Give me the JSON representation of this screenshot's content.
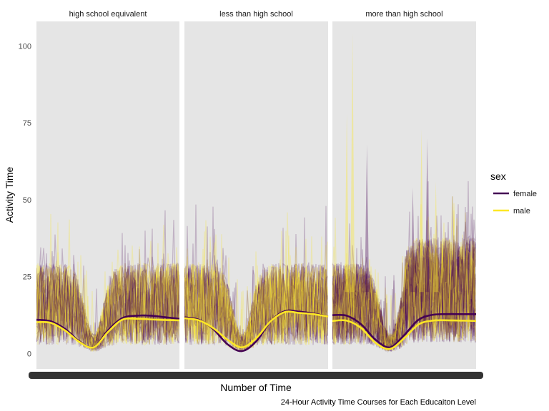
{
  "chart_data": {
    "type": "line",
    "caption": "24-Hour Activity Time Courses for Each Educaiton Level",
    "xlabel": "Number of Time",
    "ylabel": "Activity Time",
    "ylim": [
      -5,
      108
    ],
    "yticks": [
      0,
      25,
      50,
      75,
      100
    ],
    "panels": [
      "high school equivalent",
      "less than high school",
      "more than high school"
    ],
    "legend": {
      "title": "sex",
      "position": "right",
      "entries": [
        {
          "name": "female",
          "color": "#440154"
        },
        {
          "name": "male",
          "color": "#FDE725"
        }
      ]
    },
    "grid": false,
    "smooth_x": [
      0,
      0.1,
      0.2,
      0.3,
      0.4,
      0.5,
      0.6,
      0.7,
      0.8,
      0.9,
      1.0
    ],
    "series": [
      {
        "panel": "high school equivalent",
        "name": "female",
        "values": [
          11,
          10.5,
          8,
          4,
          2,
          7.5,
          11.5,
          12.3,
          12.3,
          11.8,
          11.3
        ]
      },
      {
        "panel": "high school equivalent",
        "name": "male",
        "values": [
          10.2,
          10,
          7.5,
          3.8,
          2,
          7,
          11,
          11.3,
          11.1,
          10.9,
          10.8
        ]
      },
      {
        "panel": "less than high school",
        "name": "female",
        "values": [
          11.8,
          11,
          8,
          3,
          0.8,
          4,
          10.5,
          13.8,
          13.6,
          13,
          12
        ]
      },
      {
        "panel": "less than high school",
        "name": "male",
        "values": [
          11.5,
          10.8,
          8.3,
          4.5,
          2,
          5,
          10.5,
          13.5,
          13.2,
          12.8,
          12
        ]
      },
      {
        "panel": "more than high school",
        "name": "female",
        "values": [
          12.5,
          12.3,
          9.5,
          4.5,
          2,
          6,
          11,
          12.6,
          12.8,
          12.8,
          12.8
        ]
      },
      {
        "panel": "more than high school",
        "name": "male",
        "values": [
          10.6,
          10.7,
          8.3,
          3.5,
          1.5,
          5,
          9.5,
          10.7,
          10.8,
          10.7,
          10.6
        ]
      }
    ]
  }
}
